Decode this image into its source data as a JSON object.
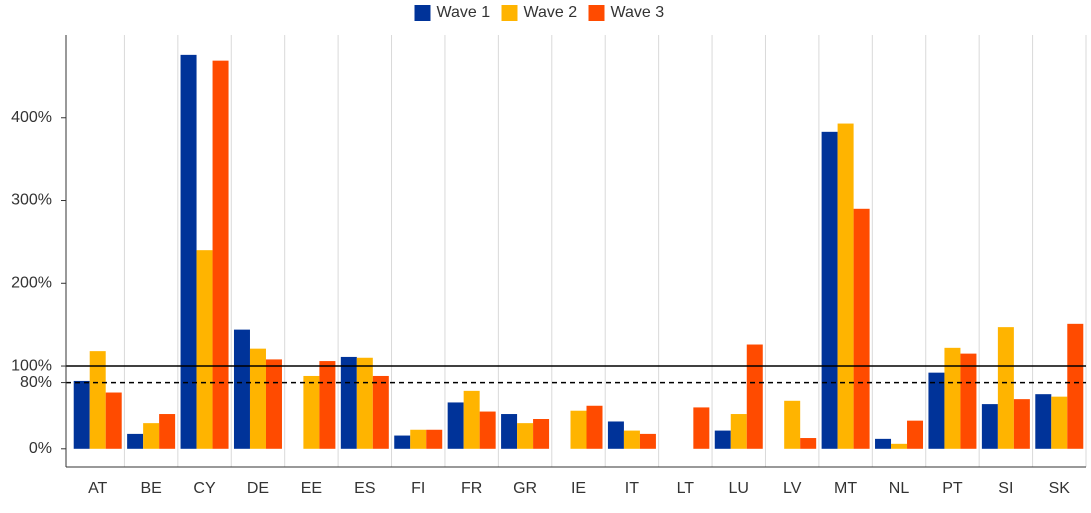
{
  "chart_data": {
    "type": "bar",
    "categories": [
      "AT",
      "BE",
      "CY",
      "DE",
      "EE",
      "ES",
      "FI",
      "FR",
      "GR",
      "IE",
      "IT",
      "LT",
      "LU",
      "LV",
      "MT",
      "NL",
      "PT",
      "SI",
      "SK"
    ],
    "series": [
      {
        "name": "Wave 1",
        "color": "#003399",
        "values": [
          82,
          18,
          476,
          144,
          null,
          111,
          16,
          56,
          42,
          null,
          33,
          null,
          22,
          null,
          383,
          12,
          92,
          54,
          66
        ]
      },
      {
        "name": "Wave 2",
        "color": "#ffb400",
        "values": [
          118,
          31,
          240,
          121,
          88,
          110,
          23,
          70,
          31,
          46,
          22,
          null,
          42,
          58,
          393,
          6,
          122,
          147,
          63
        ]
      },
      {
        "name": "Wave 3",
        "color": "#ff4b00",
        "values": [
          68,
          42,
          469,
          108,
          106,
          88,
          23,
          45,
          36,
          52,
          18,
          50,
          126,
          13,
          290,
          34,
          115,
          60,
          151
        ]
      }
    ],
    "ylim": [
      -22,
      500
    ],
    "yticks": [
      {
        "value": 0,
        "label": "0%"
      },
      {
        "value": 80,
        "label": "80%"
      },
      {
        "value": 100,
        "label": "100%"
      },
      {
        "value": 200,
        "label": "200%"
      },
      {
        "value": 300,
        "label": "300%"
      },
      {
        "value": 400,
        "label": "400%"
      }
    ],
    "reference_lines": [
      {
        "value": 100,
        "style": "solid"
      },
      {
        "value": 80,
        "style": "dashed"
      }
    ],
    "grid": true,
    "legend": "top"
  }
}
